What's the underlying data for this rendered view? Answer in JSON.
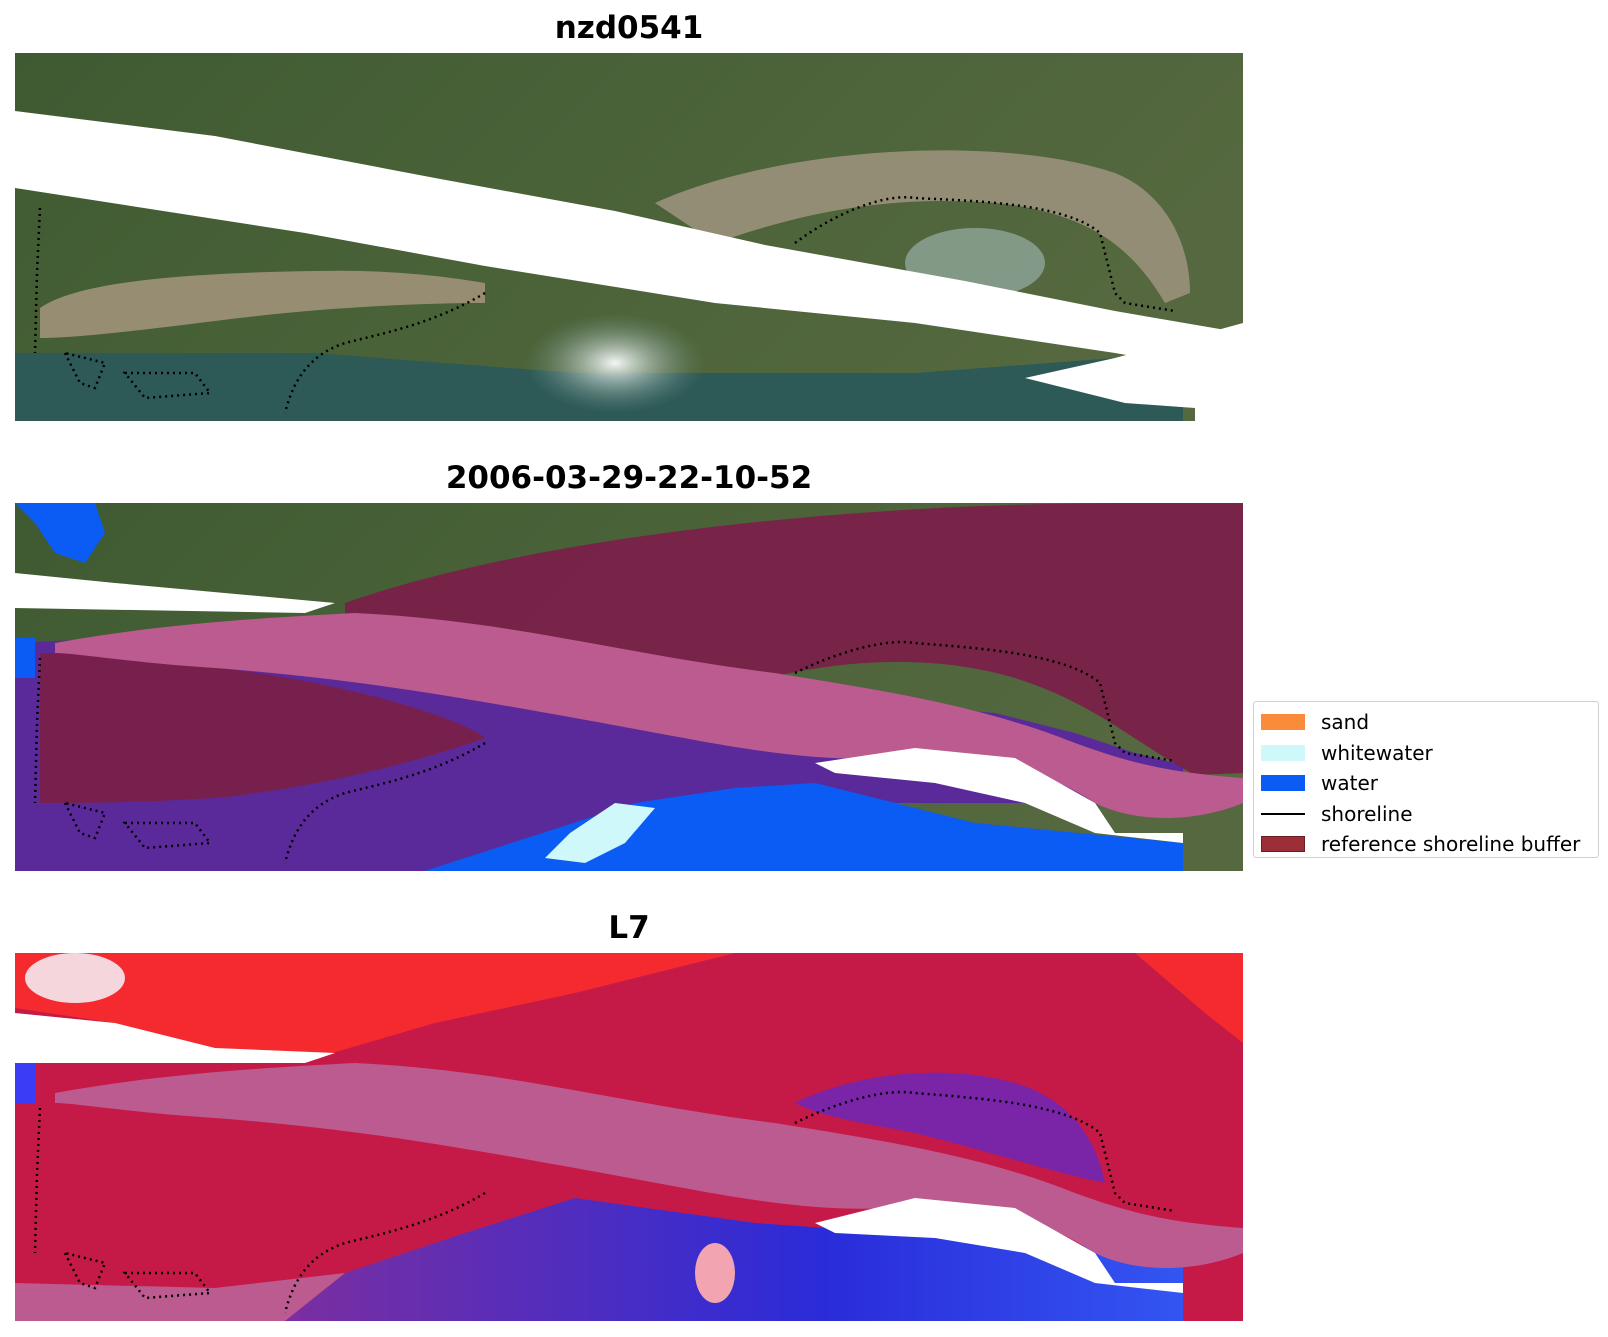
{
  "panels": [
    {
      "title": "nzd0541"
    },
    {
      "title": "2006-03-29-22-10-52"
    },
    {
      "title": "L7"
    }
  ],
  "legend": {
    "items": [
      {
        "label": "sand",
        "color": "#f98b3a",
        "kind": "patch"
      },
      {
        "label": "whitewater",
        "color": "#cff8fa",
        "kind": "patch"
      },
      {
        "label": "water",
        "color": "#0a5cf5",
        "kind": "patch"
      },
      {
        "label": "shoreline",
        "color": "#000000",
        "kind": "line"
      },
      {
        "label": "reference shoreline buffer",
        "color": "#9b2e36",
        "kind": "patch"
      }
    ]
  }
}
